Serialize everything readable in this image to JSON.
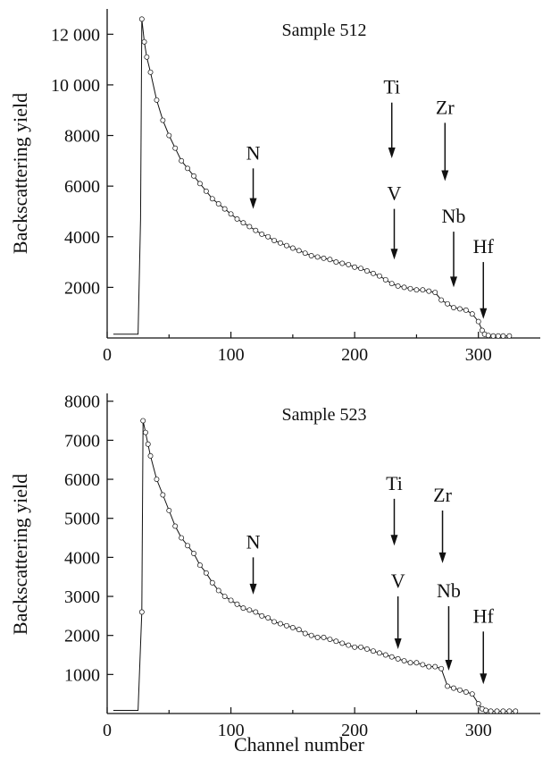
{
  "chart_data": [
    {
      "type": "scatter",
      "title": "Sample 512",
      "xlabel": "",
      "ylabel": "Backscattering yield",
      "xlim": [
        0,
        350
      ],
      "ylim": [
        0,
        13000
      ],
      "xticks": [
        0,
        100,
        200,
        300
      ],
      "xtick_labels": [
        "0",
        "100",
        "200",
        "300"
      ],
      "yticks": [
        2000,
        4000,
        6000,
        8000,
        10000,
        12000
      ],
      "ytick_labels": [
        "2000",
        "4000",
        "6000",
        "8000",
        "10 000",
        "12 000"
      ],
      "grid": false,
      "series": [
        {
          "x": [
            5,
            10,
            15,
            20,
            25,
            27,
            28,
            30,
            32,
            35,
            40,
            45,
            50,
            55,
            60,
            65,
            70,
            75,
            80,
            85,
            90,
            95,
            100,
            105,
            110,
            115,
            120,
            125,
            130,
            135,
            140,
            145,
            150,
            155,
            160,
            165,
            170,
            175,
            180,
            185,
            190,
            195,
            200,
            205,
            210,
            215,
            220,
            225,
            230,
            235,
            240,
            245,
            250,
            255,
            260,
            265,
            270,
            275,
            280,
            285,
            290,
            295,
            300,
            303,
            305,
            308,
            312,
            316,
            320,
            325
          ],
          "y": [
            150,
            150,
            150,
            150,
            150,
            4700,
            12600,
            11700,
            11100,
            10500,
            9400,
            8600,
            8000,
            7500,
            7000,
            6700,
            6400,
            6100,
            5800,
            5500,
            5300,
            5100,
            4900,
            4700,
            4550,
            4400,
            4250,
            4100,
            4000,
            3850,
            3750,
            3650,
            3550,
            3450,
            3350,
            3250,
            3200,
            3150,
            3100,
            3000,
            2950,
            2900,
            2800,
            2750,
            2650,
            2550,
            2450,
            2300,
            2150,
            2050,
            2000,
            1950,
            1900,
            1900,
            1850,
            1800,
            1500,
            1350,
            1200,
            1150,
            1100,
            950,
            650,
            300,
            150,
            100,
            80,
            80,
            80,
            80
          ]
        }
      ],
      "annotations": [
        {
          "text": "N",
          "x": 118,
          "y_top": 6700,
          "y_tip": 5100
        },
        {
          "text": "Ti",
          "x": 230,
          "y_top": 9300,
          "y_tip": 7100
        },
        {
          "text": "V",
          "x": 232,
          "y_top": 5100,
          "y_tip": 3100
        },
        {
          "text": "Zr",
          "x": 273,
          "y_top": 8500,
          "y_tip": 6200
        },
        {
          "text": "Nb",
          "x": 280,
          "y_top": 4200,
          "y_tip": 2000
        },
        {
          "text": "Hf",
          "x": 304,
          "y_top": 3000,
          "y_tip": 750
        }
      ]
    },
    {
      "type": "scatter",
      "title": "Sample 523",
      "xlabel": "Channel number",
      "ylabel": "Backscattering yield",
      "xlim": [
        0,
        350
      ],
      "ylim": [
        0,
        8200
      ],
      "xticks": [
        0,
        100,
        200,
        300
      ],
      "xtick_labels": [
        "0",
        "100",
        "200",
        "300"
      ],
      "yticks": [
        1000,
        2000,
        3000,
        4000,
        5000,
        6000,
        7000,
        8000
      ],
      "ytick_labels": [
        "1000",
        "2000",
        "3000",
        "4000",
        "5000",
        "6000",
        "7000",
        "8000"
      ],
      "grid": false,
      "series": [
        {
          "x": [
            5,
            10,
            15,
            20,
            25,
            28,
            29,
            31,
            33,
            35,
            40,
            45,
            50,
            55,
            60,
            65,
            70,
            75,
            80,
            85,
            90,
            95,
            100,
            105,
            110,
            115,
            120,
            125,
            130,
            135,
            140,
            145,
            150,
            155,
            160,
            165,
            170,
            175,
            180,
            185,
            190,
            195,
            200,
            205,
            210,
            215,
            220,
            225,
            230,
            235,
            240,
            245,
            250,
            255,
            260,
            265,
            270,
            275,
            280,
            285,
            290,
            295,
            300,
            303,
            306,
            310,
            315,
            320,
            325,
            330
          ],
          "y": [
            80,
            80,
            80,
            80,
            80,
            2600,
            7500,
            7200,
            6900,
            6600,
            6000,
            5600,
            5200,
            4800,
            4500,
            4300,
            4100,
            3800,
            3600,
            3350,
            3150,
            3000,
            2900,
            2800,
            2700,
            2650,
            2600,
            2500,
            2450,
            2350,
            2300,
            2250,
            2200,
            2150,
            2050,
            2000,
            1950,
            1950,
            1900,
            1850,
            1800,
            1750,
            1700,
            1700,
            1650,
            1600,
            1550,
            1500,
            1450,
            1400,
            1350,
            1300,
            1300,
            1250,
            1200,
            1200,
            1150,
            700,
            650,
            600,
            550,
            500,
            250,
            120,
            80,
            60,
            60,
            60,
            60,
            60
          ]
        }
      ],
      "annotations": [
        {
          "text": "N",
          "x": 118,
          "y_top": 4000,
          "y_tip": 3050
        },
        {
          "text": "Ti",
          "x": 232,
          "y_top": 5500,
          "y_tip": 4300
        },
        {
          "text": "V",
          "x": 235,
          "y_top": 3000,
          "y_tip": 1650
        },
        {
          "text": "Zr",
          "x": 271,
          "y_top": 5200,
          "y_tip": 3850
        },
        {
          "text": "Nb",
          "x": 276,
          "y_top": 2750,
          "y_tip": 1100
        },
        {
          "text": "Hf",
          "x": 304,
          "y_top": 2100,
          "y_tip": 750
        }
      ]
    }
  ]
}
